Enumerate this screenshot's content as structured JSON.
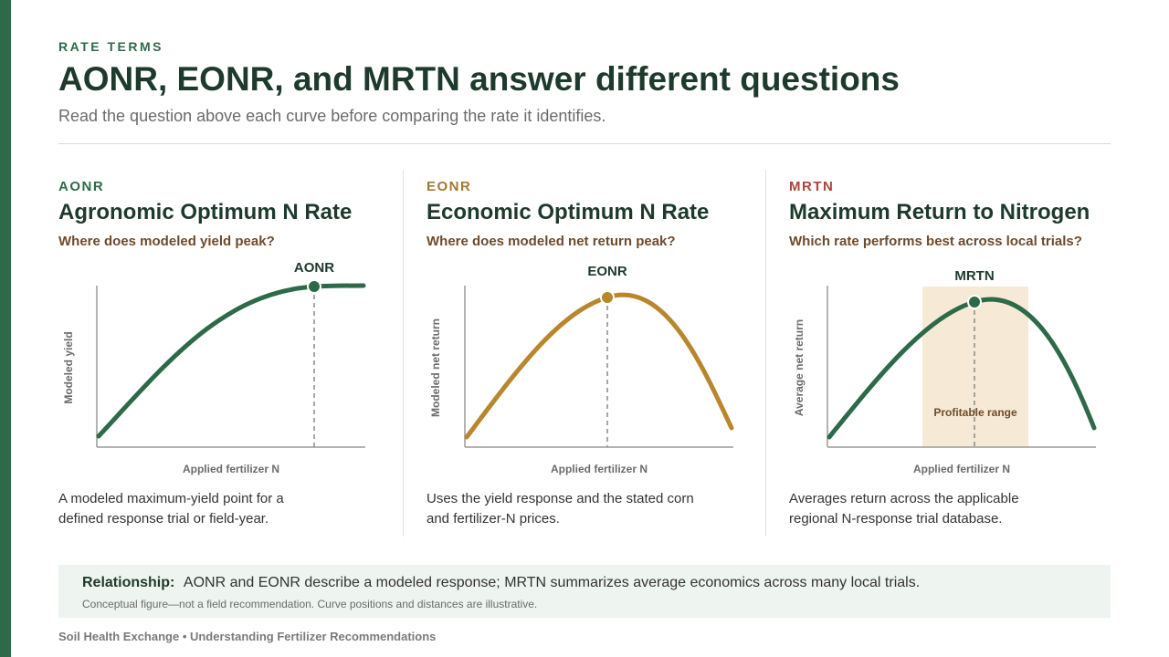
{
  "header": {
    "eyebrow": "RATE TERMS",
    "title": "AONR, EONR, and MRTN answer different questions",
    "subtitle": "Read the question above each curve before comparing the rate it identifies."
  },
  "panels": [
    {
      "tag": "AONR",
      "tag_color": "#2d6a49",
      "title": "Agronomic Optimum N Rate",
      "question": "Where does modeled yield peak?",
      "marker_label": "AONR",
      "y_axis_label": "Modeled yield",
      "x_axis_label": "Applied fertilizer N",
      "curve_color": "#2d6a49",
      "description": "A modeled maximum-yield point for a defined response trial or field-year."
    },
    {
      "tag": "EONR",
      "tag_color": "#a6782a",
      "title": "Economic Optimum N Rate",
      "question": "Where does modeled net return peak?",
      "marker_label": "EONR",
      "y_axis_label": "Modeled net return",
      "x_axis_label": "Applied fertilizer N",
      "curve_color": "#b8862c",
      "description": "Uses the yield response and the stated corn and fertilizer-N prices."
    },
    {
      "tag": "MRTN",
      "tag_color": "#a8453a",
      "title": "Maximum Return to Nitrogen",
      "question": "Which rate performs best across local trials?",
      "marker_label": "MRTN",
      "y_axis_label": "Average net return",
      "x_axis_label": "Applied fertilizer N",
      "curve_color": "#2d6a49",
      "range_label": "Profitable range",
      "range_color": "#f6ead6",
      "description": "Averages return across the applicable regional N-response trial database."
    }
  ],
  "note": {
    "label": "Relationship:",
    "text": "AONR and EONR describe a modeled response; MRTN summarizes average economics across many local trials.",
    "small": "Conceptual figure—not a field recommendation. Curve positions and distances are illustrative."
  },
  "footer": "Soil Health Exchange • Understanding Fertilizer Recommendations"
}
